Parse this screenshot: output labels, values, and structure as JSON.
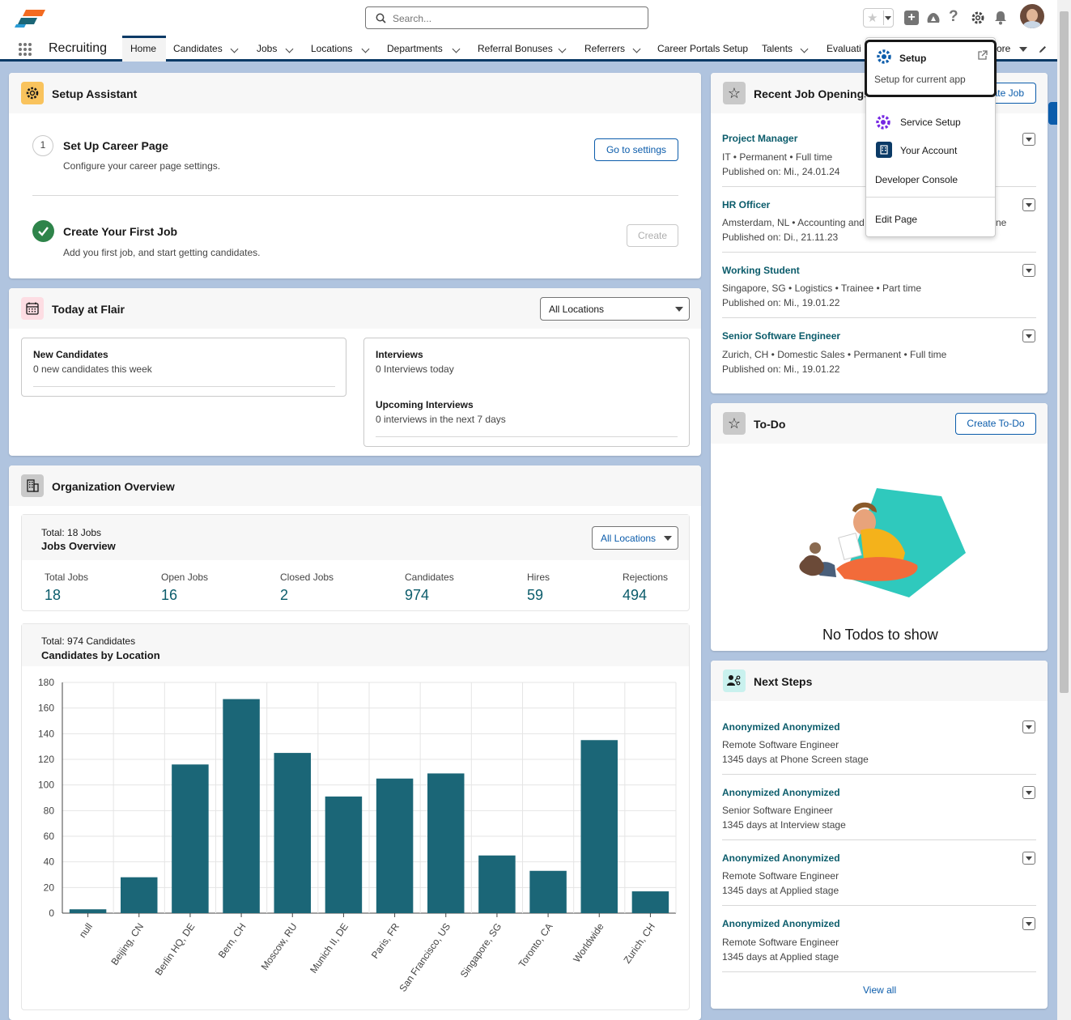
{
  "header": {
    "search_placeholder": "Search...",
    "app_name": "Recruiting",
    "tabs": [
      "Home",
      "Candidates",
      "Jobs",
      "Locations",
      "Departments",
      "Referral Bonuses",
      "Referrers",
      "Career Portals Setup",
      "Talents",
      "Evaluati",
      "ore"
    ]
  },
  "setup_menu": {
    "setup": "Setup",
    "setup_sub": "Setup for current app",
    "service_setup": "Service Setup",
    "your_account": "Your Account",
    "developer_console": "Developer Console",
    "edit_page": "Edit Page"
  },
  "setup_assistant": {
    "title": "Setup Assistant",
    "step1_num": "1",
    "step1_title": "Set Up Career Page",
    "step1_desc": "Configure your career page settings.",
    "step1_btn": "Go to settings",
    "step2_title": "Create Your First Job",
    "step2_desc": "Add you first job, and start getting candidates.",
    "step2_btn": "Create"
  },
  "today": {
    "title": "Today at Flair",
    "filter": "All Locations",
    "new_candidates_title": "New Candidates",
    "new_candidates_desc": "0 new candidates this week",
    "interviews_title": "Interviews",
    "interviews_desc": "0 Interviews today",
    "upcoming_title": "Upcoming Interviews",
    "upcoming_desc": "0 interviews in the next 7 days"
  },
  "org": {
    "title": "Organization Overview",
    "jobs_total": "Total: 18 Jobs",
    "jobs_title": "Jobs Overview",
    "jobs_filter": "All Locations",
    "stats": [
      {
        "label": "Total Jobs",
        "value": "18"
      },
      {
        "label": "Open Jobs",
        "value": "16"
      },
      {
        "label": "Closed Jobs",
        "value": "2"
      },
      {
        "label": "Candidates",
        "value": "974"
      },
      {
        "label": "Hires",
        "value": "59"
      },
      {
        "label": "Rejections",
        "value": "494"
      }
    ],
    "cand_total": "Total: 974 Candidates",
    "cand_title": "Candidates by Location"
  },
  "chart_data": {
    "type": "bar",
    "title": "Candidates by Location",
    "categories": [
      "null",
      "Beijing, CN",
      "Berlin HQ, DE",
      "Bern, CH",
      "Moscow, RU",
      "Munich II, DE",
      "Paris, FR",
      "San Francisco, US",
      "Singapore, SG",
      "Toronto, CA",
      "Worldwide",
      "Zurich, CH"
    ],
    "values": [
      3,
      28,
      116,
      167,
      125,
      91,
      105,
      109,
      45,
      33,
      135,
      17
    ],
    "ylim": [
      0,
      180
    ],
    "yticks": [
      0,
      20,
      40,
      60,
      80,
      100,
      120,
      140,
      160,
      180
    ],
    "grid": true,
    "color": "#1b6677"
  },
  "recent_jobs": {
    "title": "Recent Job Openings",
    "button": "ate Job",
    "items": [
      {
        "title": "Project Manager",
        "meta": "IT • Permanent • Full time",
        "published": "Published on: Mi., 24.01.24"
      },
      {
        "title": "HR Officer",
        "meta": "Amsterdam, NL • Accounting and",
        "meta_tail": "ne",
        "published": "Published on: Di., 21.11.23"
      },
      {
        "title": "Working Student",
        "meta": "Singapore, SG • Logistics • Trainee • Part time",
        "published": "Published on: Mi., 19.01.22"
      },
      {
        "title": "Senior Software Engineer",
        "meta": "Zurich, CH • Domestic Sales • Permanent • Full time",
        "published": "Published on: Mi., 19.01.22"
      }
    ]
  },
  "todo": {
    "title": "To-Do",
    "button": "Create To-Do",
    "empty": "No Todos to show"
  },
  "next_steps": {
    "title": "Next Steps",
    "items": [
      {
        "name": "Anonymized Anonymized",
        "job": "Remote Software Engineer",
        "stage": "1345 days at Phone Screen stage"
      },
      {
        "name": "Anonymized Anonymized",
        "job": "Senior Software Engineer",
        "stage": "1345 days at Interview stage"
      },
      {
        "name": "Anonymized Anonymized",
        "job": "Remote Software Engineer",
        "stage": "1345 days at Applied stage"
      },
      {
        "name": "Anonymized Anonymized",
        "job": "Remote Software Engineer",
        "stage": "1345 days at Applied stage"
      }
    ],
    "view_all": "View all"
  },
  "colors": {
    "accent": "#0b5cab",
    "teal": "#1b6677",
    "nav": "#0b3a66",
    "green": "#2e844a"
  }
}
